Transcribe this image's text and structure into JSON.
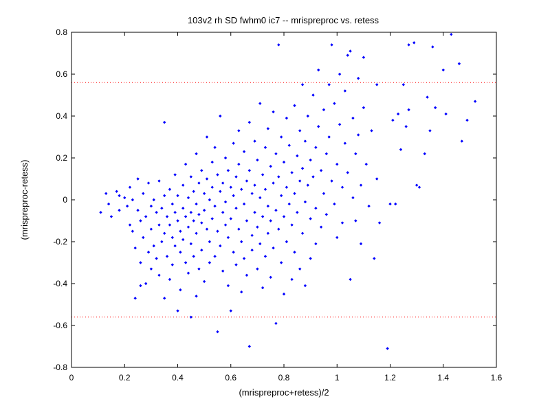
{
  "chart_data": {
    "type": "scatter",
    "title": "103v2 rh SD fwhm0 ic7 -- mrispreproc vs. retess",
    "xlabel": "(mrispreproc+retess)/2",
    "ylabel": "(mrispreproc-retess)",
    "xlim": [
      0,
      1.6
    ],
    "ylim": [
      -0.8,
      0.8
    ],
    "xticks": [
      "0",
      "0.2",
      "0.4",
      "0.6",
      "0.8",
      "1",
      "1.2",
      "1.4",
      "1.6"
    ],
    "yticks": [
      "-0.8",
      "-0.6",
      "-0.4",
      "-0.2",
      "0",
      "0.2",
      "0.4",
      "0.6",
      "0.8"
    ],
    "grid": false,
    "marker_color": "#0000ff",
    "reference_line_color": "#ff0000",
    "reference_lines_y": [
      0.56,
      -0.56
    ],
    "points": [
      [
        0.11,
        -0.06
      ],
      [
        0.13,
        0.03
      ],
      [
        0.14,
        -0.02
      ],
      [
        0.15,
        -0.08
      ],
      [
        0.17,
        0.04
      ],
      [
        0.18,
        0.02
      ],
      [
        0.18,
        -0.05
      ],
      [
        0.2,
        0.01
      ],
      [
        0.21,
        -0.03
      ],
      [
        0.22,
        0.06
      ],
      [
        0.22,
        -0.12
      ],
      [
        0.23,
        0.0
      ],
      [
        0.23,
        -0.15
      ],
      [
        0.24,
        -0.23
      ],
      [
        0.24,
        -0.47
      ],
      [
        0.25,
        0.1
      ],
      [
        0.25,
        -0.05
      ],
      [
        0.26,
        -0.1
      ],
      [
        0.26,
        -0.3
      ],
      [
        0.26,
        -0.41
      ],
      [
        0.27,
        0.03
      ],
      [
        0.27,
        -0.18
      ],
      [
        0.28,
        -0.08
      ],
      [
        0.28,
        -0.4
      ],
      [
        0.29,
        -0.25
      ],
      [
        0.29,
        0.08
      ],
      [
        0.3,
        -0.03
      ],
      [
        0.3,
        -0.14
      ],
      [
        0.3,
        -0.33
      ],
      [
        0.31,
        0.0
      ],
      [
        0.31,
        -0.22
      ],
      [
        0.32,
        -0.06
      ],
      [
        0.32,
        -0.28
      ],
      [
        0.33,
        0.09
      ],
      [
        0.33,
        -0.12
      ],
      [
        0.33,
        -0.36
      ],
      [
        0.34,
        -0.04
      ],
      [
        0.34,
        -0.2
      ],
      [
        0.35,
        0.37
      ],
      [
        0.35,
        0.02
      ],
      [
        0.35,
        -0.16
      ],
      [
        0.35,
        -0.47
      ],
      [
        0.36,
        -0.08
      ],
      [
        0.36,
        -0.27
      ],
      [
        0.37,
        0.05
      ],
      [
        0.37,
        -0.12
      ],
      [
        0.37,
        -0.38
      ],
      [
        0.38,
        -0.02
      ],
      [
        0.38,
        -0.18
      ],
      [
        0.38,
        -0.31
      ],
      [
        0.39,
        0.12
      ],
      [
        0.39,
        -0.06
      ],
      [
        0.39,
        -0.22
      ],
      [
        0.4,
        -0.53
      ],
      [
        0.4,
        0.02
      ],
      [
        0.4,
        -0.1
      ],
      [
        0.41,
        -0.15
      ],
      [
        0.41,
        -0.25
      ],
      [
        0.41,
        -0.43
      ],
      [
        0.42,
        0.07
      ],
      [
        0.42,
        -0.04
      ],
      [
        0.42,
        -0.19
      ],
      [
        0.43,
        0.17
      ],
      [
        0.43,
        -0.08
      ],
      [
        0.43,
        -0.3
      ],
      [
        0.44,
        0.01
      ],
      [
        0.44,
        -0.13
      ],
      [
        0.44,
        -0.35
      ],
      [
        0.45,
        0.11
      ],
      [
        0.45,
        -0.06
      ],
      [
        0.45,
        -0.21
      ],
      [
        0.45,
        -0.56
      ],
      [
        0.46,
        0.04
      ],
      [
        0.46,
        -0.1
      ],
      [
        0.46,
        -0.27
      ],
      [
        0.47,
        0.22
      ],
      [
        0.47,
        -0.02
      ],
      [
        0.47,
        -0.16
      ],
      [
        0.47,
        -0.46
      ],
      [
        0.48,
        0.08
      ],
      [
        0.48,
        -0.07
      ],
      [
        0.48,
        -0.33
      ],
      [
        0.49,
        0.14
      ],
      [
        0.49,
        -0.11
      ],
      [
        0.49,
        -0.24
      ],
      [
        0.5,
        0.03
      ],
      [
        0.5,
        -0.05
      ],
      [
        0.5,
        -0.39
      ],
      [
        0.51,
        0.3
      ],
      [
        0.51,
        0.1
      ],
      [
        0.51,
        -0.14
      ],
      [
        0.52,
        0.0
      ],
      [
        0.52,
        -0.2
      ],
      [
        0.52,
        -0.3
      ],
      [
        0.53,
        0.18
      ],
      [
        0.53,
        0.06
      ],
      [
        0.53,
        -0.09
      ],
      [
        0.54,
        0.25
      ],
      [
        0.54,
        -0.03
      ],
      [
        0.54,
        -0.27
      ],
      [
        0.55,
        0.12
      ],
      [
        0.55,
        -0.15
      ],
      [
        0.55,
        -0.63
      ],
      [
        0.56,
        0.4
      ],
      [
        0.56,
        0.04
      ],
      [
        0.56,
        -0.22
      ],
      [
        0.57,
        0.08
      ],
      [
        0.57,
        -0.06
      ],
      [
        0.57,
        -0.34
      ],
      [
        0.58,
        0.2
      ],
      [
        0.58,
        -0.01
      ],
      [
        0.58,
        -0.12
      ],
      [
        0.59,
        0.14
      ],
      [
        0.59,
        -0.18
      ],
      [
        0.59,
        -0.41
      ],
      [
        0.6,
        0.06
      ],
      [
        0.6,
        -0.09
      ],
      [
        0.6,
        -0.53
      ],
      [
        0.61,
        0.27
      ],
      [
        0.61,
        0.02
      ],
      [
        0.61,
        -0.25
      ],
      [
        0.62,
        0.11
      ],
      [
        0.62,
        -0.04
      ],
      [
        0.62,
        -0.31
      ],
      [
        0.63,
        0.33
      ],
      [
        0.63,
        0.17
      ],
      [
        0.63,
        -0.14
      ],
      [
        0.64,
        0.05
      ],
      [
        0.64,
        -0.2
      ],
      [
        0.64,
        -0.44
      ],
      [
        0.65,
        0.23
      ],
      [
        0.65,
        -0.02
      ],
      [
        0.65,
        -0.28
      ],
      [
        0.66,
        0.09
      ],
      [
        0.66,
        -0.1
      ],
      [
        0.66,
        -0.36
      ],
      [
        0.67,
        0.37
      ],
      [
        0.67,
        0.14
      ],
      [
        0.67,
        -0.7
      ],
      [
        0.68,
        0.03
      ],
      [
        0.68,
        -0.17
      ],
      [
        0.68,
        -0.24
      ],
      [
        0.69,
        0.28
      ],
      [
        0.69,
        0.07
      ],
      [
        0.69,
        -0.06
      ],
      [
        0.7,
        0.19
      ],
      [
        0.7,
        -0.13
      ],
      [
        0.7,
        -0.33
      ],
      [
        0.71,
        0.46
      ],
      [
        0.71,
        0.01
      ],
      [
        0.71,
        -0.21
      ],
      [
        0.72,
        0.12
      ],
      [
        0.72,
        -0.08
      ],
      [
        0.72,
        -0.42
      ],
      [
        0.73,
        0.25
      ],
      [
        0.73,
        0.05
      ],
      [
        0.73,
        -0.27
      ],
      [
        0.74,
        0.34
      ],
      [
        0.74,
        -0.03
      ],
      [
        0.74,
        -0.16
      ],
      [
        0.75,
        0.16
      ],
      [
        0.75,
        -0.1
      ],
      [
        0.75,
        -0.37
      ],
      [
        0.76,
        0.42
      ],
      [
        0.76,
        0.08
      ],
      [
        0.76,
        -0.23
      ],
      [
        0.77,
        0.22
      ],
      [
        0.77,
        -0.05
      ],
      [
        0.77,
        -0.59
      ],
      [
        0.78,
        0.74
      ],
      [
        0.78,
        0.11
      ],
      [
        0.78,
        -0.14
      ],
      [
        0.79,
        0.3
      ],
      [
        0.79,
        0.02
      ],
      [
        0.79,
        -0.3
      ],
      [
        0.8,
        0.18
      ],
      [
        0.8,
        -0.08
      ],
      [
        0.8,
        -0.45
      ],
      [
        0.81,
        0.39
      ],
      [
        0.81,
        0.06
      ],
      [
        0.81,
        -0.2
      ],
      [
        0.82,
        0.26
      ],
      [
        0.82,
        -0.02
      ],
      [
        0.83,
        0.13
      ],
      [
        0.83,
        -0.12
      ],
      [
        0.83,
        -0.38
      ],
      [
        0.84,
        0.45
      ],
      [
        0.84,
        0.03
      ],
      [
        0.84,
        -0.25
      ],
      [
        0.85,
        0.21
      ],
      [
        0.85,
        -0.06
      ],
      [
        0.86,
        0.33
      ],
      [
        0.86,
        0.09
      ],
      [
        0.86,
        -0.33
      ],
      [
        0.87,
        0.55
      ],
      [
        0.87,
        0.15
      ],
      [
        0.87,
        -0.16
      ],
      [
        0.88,
        0.28
      ],
      [
        0.88,
        -0.01
      ],
      [
        0.88,
        -0.41
      ],
      [
        0.89,
        0.4
      ],
      [
        0.89,
        0.07
      ],
      [
        0.9,
        0.19
      ],
      [
        0.9,
        -0.09
      ],
      [
        0.9,
        -0.28
      ],
      [
        0.91,
        0.5
      ],
      [
        0.91,
        0.11
      ],
      [
        0.92,
        0.25
      ],
      [
        0.92,
        -0.04
      ],
      [
        0.92,
        -0.21
      ],
      [
        0.93,
        0.62
      ],
      [
        0.93,
        0.35
      ],
      [
        0.94,
        0.14
      ],
      [
        0.94,
        -0.13
      ],
      [
        0.95,
        0.43
      ],
      [
        0.95,
        0.03
      ],
      [
        0.96,
        0.22
      ],
      [
        0.96,
        -0.07
      ],
      [
        0.97,
        0.55
      ],
      [
        0.97,
        0.3
      ],
      [
        0.98,
        0.74
      ],
      [
        0.98,
        0.09
      ],
      [
        0.99,
        0.46
      ],
      [
        0.99,
        -0.02
      ],
      [
        1.0,
        0.17
      ],
      [
        1.0,
        -0.18
      ],
      [
        1.01,
        0.6
      ],
      [
        1.01,
        0.36
      ],
      [
        1.02,
        0.06
      ],
      [
        1.02,
        -0.11
      ],
      [
        1.03,
        0.27
      ],
      [
        1.03,
        0.52
      ],
      [
        1.04,
        0.69
      ],
      [
        1.04,
        0.13
      ],
      [
        1.05,
        0.71
      ],
      [
        1.05,
        -0.38
      ],
      [
        1.06,
        0.39
      ],
      [
        1.06,
        0.01
      ],
      [
        1.07,
        0.22
      ],
      [
        1.07,
        -0.1
      ],
      [
        1.08,
        0.58
      ],
      [
        1.08,
        0.31
      ],
      [
        1.09,
        0.07
      ],
      [
        1.09,
        -0.21
      ],
      [
        1.1,
        0.68
      ],
      [
        1.1,
        0.44
      ],
      [
        1.11,
        0.17
      ],
      [
        1.12,
        -0.03
      ],
      [
        1.13,
        0.33
      ],
      [
        1.14,
        -0.28
      ],
      [
        1.15,
        0.55
      ],
      [
        1.15,
        0.1
      ],
      [
        1.16,
        -0.11
      ],
      [
        1.19,
        -0.71
      ],
      [
        1.2,
        -0.02
      ],
      [
        1.21,
        0.38
      ],
      [
        1.22,
        -0.02
      ],
      [
        1.23,
        0.41
      ],
      [
        1.24,
        0.24
      ],
      [
        1.25,
        0.55
      ],
      [
        1.26,
        0.35
      ],
      [
        1.27,
        0.74
      ],
      [
        1.27,
        0.43
      ],
      [
        1.29,
        0.75
      ],
      [
        1.3,
        0.07
      ],
      [
        1.31,
        0.06
      ],
      [
        1.33,
        0.22
      ],
      [
        1.34,
        0.49
      ],
      [
        1.35,
        0.33
      ],
      [
        1.36,
        0.73
      ],
      [
        1.37,
        0.44
      ],
      [
        1.4,
        0.62
      ],
      [
        1.41,
        0.41
      ],
      [
        1.43,
        0.79
      ],
      [
        1.46,
        0.65
      ],
      [
        1.47,
        0.28
      ],
      [
        1.49,
        0.38
      ],
      [
        1.52,
        0.47
      ]
    ]
  }
}
